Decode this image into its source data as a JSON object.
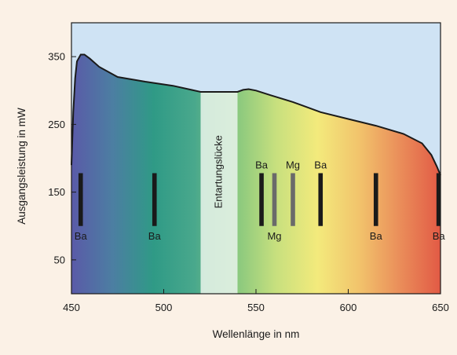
{
  "chart_data": {
    "type": "area",
    "xlabel": "Wellenlänge in nm",
    "ylabel": "Ausgangsleistung in mW",
    "xlim": [
      450,
      650
    ],
    "ylim": [
      0,
      400
    ],
    "xticks": [
      "450",
      "500",
      "550",
      "600",
      "650"
    ],
    "yticks": [
      "50",
      "150",
      "250",
      "350"
    ],
    "grid": false,
    "background_color": "#cfe3f4",
    "curve": {
      "x": [
        450,
        451,
        452,
        453,
        455,
        457,
        460,
        465,
        475,
        490,
        505,
        515,
        520,
        530,
        540,
        543,
        546,
        550,
        558,
        570,
        585,
        600,
        615,
        630,
        640,
        645,
        648,
        650
      ],
      "y": [
        190,
        268,
        318,
        343,
        353,
        353,
        347,
        335,
        320,
        313,
        307,
        301,
        298,
        298,
        298,
        301,
        302,
        300,
        293,
        283,
        268,
        258,
        248,
        236,
        222,
        205,
        188,
        175
      ]
    },
    "spectrum_gradient": [
      "#5a5aa8",
      "#4c7ea2",
      "#2f9a86",
      "#49a88c",
      "#86c77e",
      "#c8e07e",
      "#f3ea7c",
      "#f2c46c",
      "#ea8e5a",
      "#e25a45"
    ],
    "gap": {
      "label": "Entartungslücke",
      "x_start": 520,
      "x_end": 540,
      "color": "#e6f2e8"
    },
    "lines": [
      {
        "x": 455,
        "label": "Ba",
        "position": "below",
        "color": "#1a1a1a"
      },
      {
        "x": 495,
        "label": "Ba",
        "position": "below",
        "color": "#1a1a1a"
      },
      {
        "x": 553,
        "label": "Ba",
        "position": "above",
        "color": "#1a1a1a"
      },
      {
        "x": 560,
        "label": "Mg",
        "position": "below",
        "color": "#6a6a6a"
      },
      {
        "x": 570,
        "label": "Mg",
        "position": "above",
        "color": "#6a6a6a"
      },
      {
        "x": 585,
        "label": "Ba",
        "position": "above",
        "color": "#1a1a1a"
      },
      {
        "x": 615,
        "label": "Ba",
        "position": "below",
        "color": "#1a1a1a"
      },
      {
        "x": 649,
        "label": "Ba",
        "position": "below",
        "color": "#1a1a1a"
      }
    ],
    "line_range": [
      100,
      178
    ]
  }
}
